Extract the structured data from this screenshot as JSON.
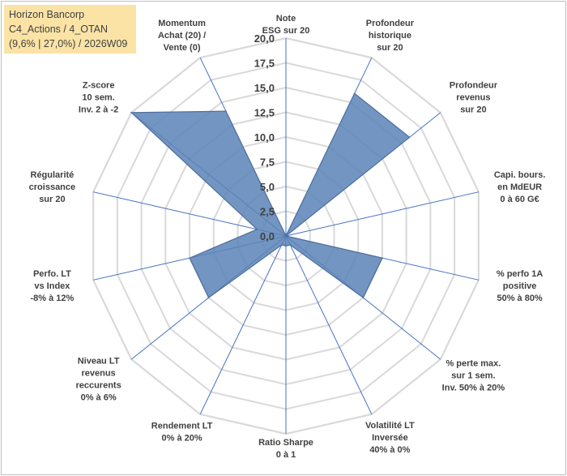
{
  "title_box": {
    "line1": "Horizon Bancorp",
    "line2": "C4_Actions / 4_OTAN",
    "line3": "(9,6% | 27,0%) / 2026W09"
  },
  "colors": {
    "grid": "#d9d9d9",
    "spoke": "#4472c4",
    "fill": "#5b83b6",
    "stroke": "#4f6fa0",
    "title_bg": "#fbe3a6"
  },
  "chart_data": {
    "type": "radar",
    "title": "Horizon Bancorp C4_Actions / 4_OTAN (9,6% | 27,0%) / 2026W09",
    "rlim": [
      0,
      20
    ],
    "ticks": [
      "0,0",
      "2,5",
      "5,0",
      "7,5",
      "10,0",
      "12,5",
      "15,0",
      "17,5",
      "20,0"
    ],
    "axes": [
      {
        "lines": [
          "Note",
          "ESG sur 20"
        ],
        "value": 0
      },
      {
        "lines": [
          "Profondeur",
          "historique",
          "sur 20"
        ],
        "value": 16
      },
      {
        "lines": [
          "Profondeur",
          "revenus",
          "sur 20"
        ],
        "value": 16
      },
      {
        "lines": [
          "Capi. bours.",
          "en MdEUR",
          "0 à 60 G€"
        ],
        "value": 0
      },
      {
        "lines": [
          "% perfo 1A",
          "positive",
          "50% à 80%"
        ],
        "value": 10
      },
      {
        "lines": [
          "% perte max.",
          "sur 1 sem.",
          "Inv. 50% à 20%"
        ],
        "value": 10
      },
      {
        "lines": [
          "Volatilité LT",
          "Inversée",
          "40% à 0%"
        ],
        "value": 1
      },
      {
        "lines": [
          "Ratio Sharpe",
          "0 à 1"
        ],
        "value": 1
      },
      {
        "lines": [
          "Rendement LT",
          "0% à 20%"
        ],
        "value": 1
      },
      {
        "lines": [
          "Niveau LT",
          "revenus",
          "reccurents",
          "0% à 6%"
        ],
        "value": 10
      },
      {
        "lines": [
          "Perfo. LT",
          "vs Index",
          "-8% à 12%"
        ],
        "value": 10
      },
      {
        "lines": [
          "Régularité",
          "croissance",
          "sur 20"
        ],
        "value": 3
      },
      {
        "lines": [
          "Z-score",
          "10 sem.",
          "Inv. 2 à -2"
        ],
        "value": 20
      },
      {
        "lines": [
          "Momentum",
          "Achat (20) /",
          "Vente (0)"
        ],
        "value": 14
      }
    ]
  }
}
